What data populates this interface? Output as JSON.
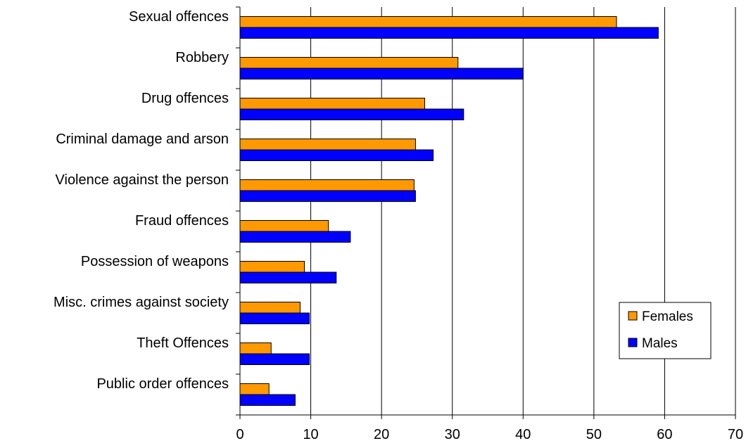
{
  "chart_data": {
    "type": "bar",
    "orientation": "horizontal",
    "title": "",
    "xlabel": "",
    "ylabel": "",
    "categories": [
      "Sexual offences",
      "Robbery",
      "Drug offences",
      "Criminal damage and arson",
      "Violence against the person",
      "Fraud offences",
      "Possession of weapons",
      "Misc. crimes against society",
      "Theft Offences",
      "Public order offences"
    ],
    "series": [
      {
        "name": "Females",
        "color": "#FF9900",
        "values": [
          53.2,
          30.8,
          26.1,
          24.8,
          24.6,
          12.5,
          9.1,
          8.5,
          4.4,
          4.1
        ]
      },
      {
        "name": "Males",
        "color": "#0000FF",
        "values": [
          59.1,
          40.0,
          31.6,
          27.3,
          24.8,
          15.6,
          13.6,
          9.8,
          9.8,
          7.8
        ]
      }
    ],
    "xlim": [
      0,
      70
    ],
    "xticks": [
      "0",
      "10",
      "20",
      "30",
      "40",
      "50",
      "60",
      "70"
    ],
    "grid": true,
    "legend_position": "bottom-right"
  }
}
